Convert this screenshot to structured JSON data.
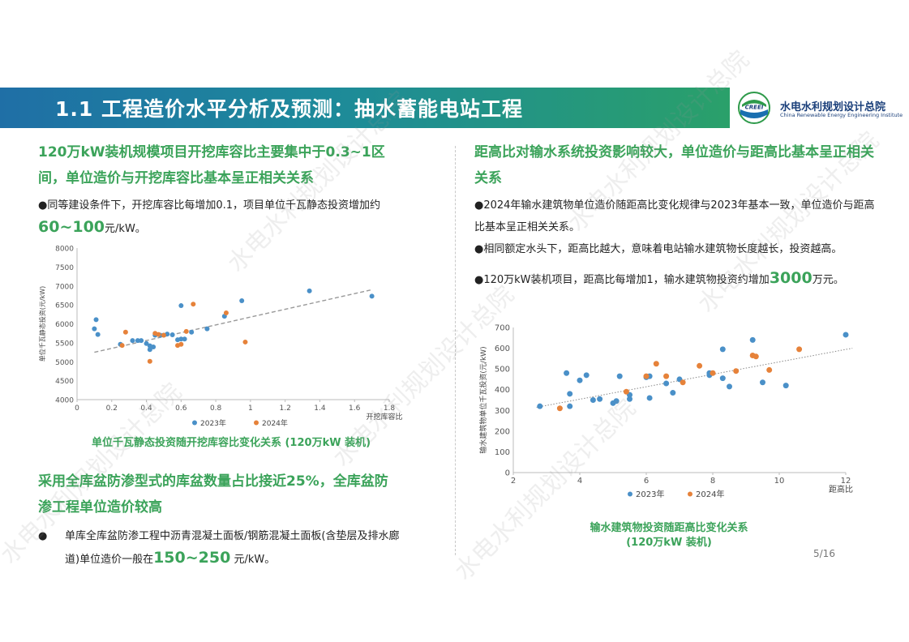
{
  "header": {
    "title": "1.1 工程造价水平分析及预测：抽水蓄能电站工程",
    "logo_cn": "水电水利规划设计总院",
    "logo_en": "China Renewable Energy Engineering Institute",
    "logo_badge": "CREEI"
  },
  "left": {
    "heading1": "120万kW装机规模项目开挖库容比主要集中于0.3~1区间，单位造价与开挖库容比基本呈正相关关系",
    "bullet1_pre": "●同等建设条件下，开挖库容比每增加0.1，项目单位千瓦静态投资增加约",
    "bullet1_big": "60~100",
    "bullet1_post": "元/kW。",
    "caption1": "单位千瓦静态投资随开挖库容比变化关系    (120万kW 装机)",
    "heading2": "采用全库盆防渗型式的库盆数量占比接近25%，全库盆防渗工程单位造价较高",
    "bullet2_dot": "●",
    "bullet2_pre": "单库全库盆防渗工程中沥青混凝土面板/钢筋混凝土面板(含垫层及排水廊道)单位造价一般在",
    "bullet2_big": "150~250",
    "bullet2_post": " 元/kW。"
  },
  "right": {
    "heading": "距高比对输水系统投资影响较大，单位造价与距高比基本呈正相关关系",
    "bullet1": "●2024年输水建筑物单位造价随距高比变化规律与2023年基本一致，单位造价与距高比基本呈正相关关系。",
    "bullet2": "●相同额定水头下，距高比越大，意味着电站输水建筑物长度越长，投资越高。",
    "bullet3_pre": "●120万kW装机项目，距高比每增加1，输水建筑物投资约增加",
    "bullet3_big": "3000",
    "bullet3_post": "万元。",
    "caption_line1": "输水建筑物投资随距高比变化关系",
    "caption_line2": "(120万kW 装机)"
  },
  "page_number": "5/16",
  "watermark_text": "水电水利规划设计总院",
  "colors": {
    "series_2023": "#4a90c8",
    "series_2024": "#e6823a",
    "accent_green": "#3ba35a",
    "trend": "#999999"
  },
  "chart_data": [
    {
      "type": "scatter",
      "title": "",
      "xlabel": "开挖库容比",
      "ylabel": "单位千瓦静态投资(元/kW)",
      "xlim": [
        0,
        1.8
      ],
      "ylim": [
        4000,
        8000
      ],
      "xticks": [
        "0",
        "0.2",
        "0.4",
        "0.6",
        "0.8",
        "1",
        "1.2",
        "1.4",
        "1.6",
        "1.8"
      ],
      "yticks": [
        "4000",
        "4500",
        "5000",
        "5500",
        "6000",
        "6500",
        "7000",
        "7500",
        "8000"
      ],
      "legend_position": "bottom",
      "trendline": {
        "x": [
          0.1,
          1.7
        ],
        "y": [
          5250,
          6900
        ]
      },
      "series": [
        {
          "name": "2023年",
          "points": [
            [
              0.1,
              5870
            ],
            [
              0.11,
              6110
            ],
            [
              0.12,
              5720
            ],
            [
              0.25,
              5460
            ],
            [
              0.32,
              5560
            ],
            [
              0.35,
              5560
            ],
            [
              0.37,
              5560
            ],
            [
              0.4,
              5480
            ],
            [
              0.42,
              5420
            ],
            [
              0.42,
              5320
            ],
            [
              0.44,
              5390
            ],
            [
              0.45,
              5700
            ],
            [
              0.48,
              5700
            ],
            [
              0.5,
              5700
            ],
            [
              0.52,
              5730
            ],
            [
              0.55,
              5710
            ],
            [
              0.58,
              5580
            ],
            [
              0.6,
              6480
            ],
            [
              0.6,
              5600
            ],
            [
              0.62,
              5600
            ],
            [
              0.66,
              5780
            ],
            [
              0.75,
              5870
            ],
            [
              0.85,
              6200
            ],
            [
              0.95,
              6610
            ],
            [
              1.34,
              6870
            ],
            [
              1.7,
              6730
            ]
          ]
        },
        {
          "name": "2024年",
          "points": [
            [
              0.26,
              5430
            ],
            [
              0.28,
              5780
            ],
            [
              0.42,
              5010
            ],
            [
              0.45,
              5750
            ],
            [
              0.47,
              5720
            ],
            [
              0.5,
              5700
            ],
            [
              0.58,
              5430
            ],
            [
              0.6,
              5460
            ],
            [
              0.63,
              5800
            ],
            [
              0.67,
              6520
            ],
            [
              0.86,
              6290
            ],
            [
              0.97,
              5520
            ]
          ]
        }
      ]
    },
    {
      "type": "scatter",
      "title": "",
      "xlabel": "距高比",
      "ylabel": "输水建筑物单位千瓦投资(元/kW)",
      "xlim": [
        2,
        12
      ],
      "ylim": [
        0,
        700
      ],
      "xticks": [
        "2",
        "4",
        "6",
        "8",
        "10",
        "12"
      ],
      "yticks": [
        "0",
        "100",
        "200",
        "300",
        "400",
        "500",
        "600",
        "700"
      ],
      "legend_position": "bottom",
      "trendline": {
        "x": [
          2.7,
          12.2
        ],
        "y": [
          315,
          600
        ]
      },
      "series": [
        {
          "name": "2023年",
          "points": [
            [
              2.8,
              320
            ],
            [
              3.6,
              480
            ],
            [
              3.7,
              380
            ],
            [
              3.7,
              320
            ],
            [
              4.0,
              445
            ],
            [
              4.2,
              470
            ],
            [
              4.4,
              350
            ],
            [
              4.6,
              355
            ],
            [
              5.0,
              335
            ],
            [
              5.1,
              345
            ],
            [
              5.2,
              465
            ],
            [
              5.5,
              355
            ],
            [
              5.5,
              375
            ],
            [
              6.0,
              460
            ],
            [
              6.1,
              465
            ],
            [
              6.1,
              360
            ],
            [
              6.6,
              430
            ],
            [
              6.8,
              385
            ],
            [
              7.0,
              450
            ],
            [
              7.9,
              480
            ],
            [
              7.9,
              470
            ],
            [
              8.3,
              595
            ],
            [
              8.3,
              455
            ],
            [
              8.5,
              415
            ],
            [
              9.2,
              640
            ],
            [
              9.5,
              435
            ],
            [
              10.2,
              420
            ],
            [
              12.0,
              665
            ]
          ]
        },
        {
          "name": "2024年",
          "points": [
            [
              3.4,
              310
            ],
            [
              5.4,
              390
            ],
            [
              6.0,
              465
            ],
            [
              6.3,
              525
            ],
            [
              6.6,
              465
            ],
            [
              7.1,
              435
            ],
            [
              7.6,
              515
            ],
            [
              8.0,
              480
            ],
            [
              8.7,
              490
            ],
            [
              9.2,
              565
            ],
            [
              9.3,
              560
            ],
            [
              9.7,
              495
            ],
            [
              10.6,
              595
            ]
          ]
        }
      ]
    }
  ]
}
